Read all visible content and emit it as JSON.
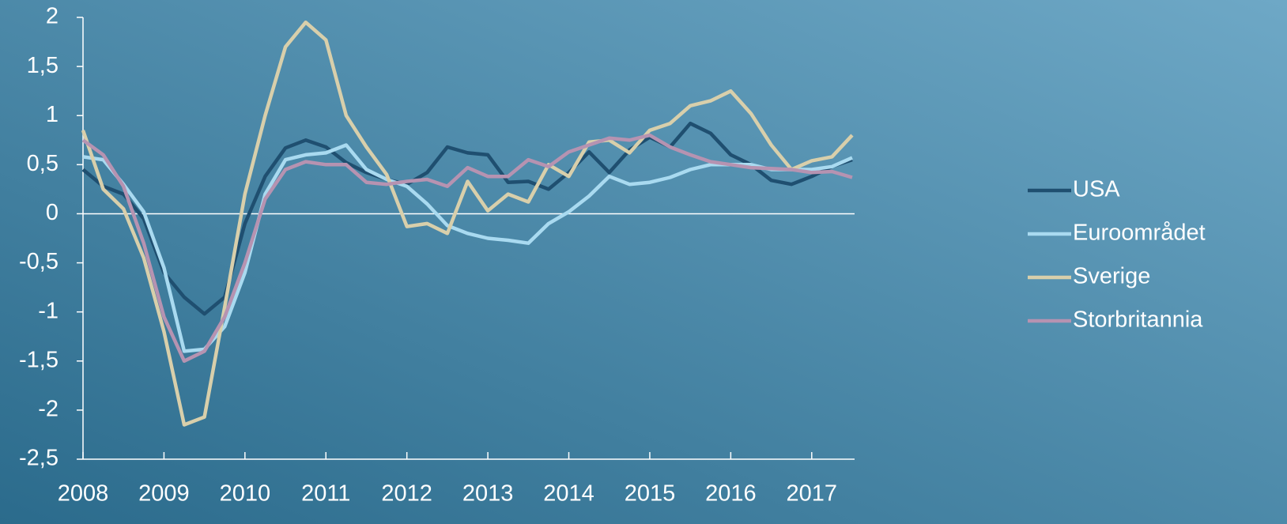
{
  "chart_data": {
    "type": "line",
    "x": [
      2008,
      2008.25,
      2008.5,
      2008.75,
      2009,
      2009.25,
      2009.5,
      2009.75,
      2010,
      2010.25,
      2010.5,
      2010.75,
      2011,
      2011.25,
      2011.5,
      2011.75,
      2012,
      2012.25,
      2012.5,
      2012.75,
      2013,
      2013.25,
      2013.5,
      2013.75,
      2014,
      2014.25,
      2014.5,
      2014.75,
      2015,
      2015.25,
      2015.5,
      2015.75,
      2016,
      2016.25,
      2016.5,
      2016.75,
      2017,
      2017.25,
      2017.5
    ],
    "series": [
      {
        "name": "USA",
        "color": "#1f4f70",
        "values": [
          0.45,
          0.28,
          0.2,
          -0.05,
          -0.6,
          -0.85,
          -1.02,
          -0.85,
          -0.1,
          0.38,
          0.67,
          0.75,
          0.68,
          0.52,
          0.42,
          0.35,
          0.3,
          0.42,
          0.68,
          0.62,
          0.6,
          0.32,
          0.33,
          0.25,
          0.42,
          0.63,
          0.42,
          0.65,
          0.78,
          0.68,
          0.92,
          0.82,
          0.6,
          0.5,
          0.34,
          0.3,
          0.38,
          0.48,
          0.55
        ]
      },
      {
        "name": "Euroområdet",
        "color": "#a9daf0",
        "values": [
          0.58,
          0.55,
          0.3,
          0.02,
          -0.55,
          -1.4,
          -1.38,
          -1.15,
          -0.6,
          0.2,
          0.55,
          0.6,
          0.62,
          0.7,
          0.45,
          0.35,
          0.28,
          0.1,
          -0.12,
          -0.2,
          -0.25,
          -0.27,
          -0.3,
          -0.1,
          0.02,
          0.18,
          0.38,
          0.3,
          0.32,
          0.37,
          0.45,
          0.5,
          0.5,
          0.5,
          0.45,
          0.45,
          0.45,
          0.48,
          0.57
        ]
      },
      {
        "name": "Sverige",
        "color": "#d8cfab",
        "values": [
          0.85,
          0.25,
          0.05,
          -0.45,
          -1.2,
          -2.15,
          -2.07,
          -0.95,
          0.2,
          1.0,
          1.7,
          1.95,
          1.77,
          1.0,
          0.68,
          0.4,
          -0.13,
          -0.1,
          -0.2,
          0.33,
          0.03,
          0.2,
          0.12,
          0.5,
          0.38,
          0.73,
          0.75,
          0.62,
          0.85,
          0.92,
          1.1,
          1.15,
          1.25,
          1.02,
          0.7,
          0.45,
          0.54,
          0.58,
          0.8
        ]
      },
      {
        "name": "Storbritannia",
        "color": "#b693b1",
        "values": [
          0.75,
          0.6,
          0.28,
          -0.3,
          -1.05,
          -1.5,
          -1.4,
          -1.05,
          -0.5,
          0.15,
          0.45,
          0.53,
          0.5,
          0.5,
          0.32,
          0.3,
          0.33,
          0.35,
          0.28,
          0.47,
          0.38,
          0.38,
          0.55,
          0.48,
          0.63,
          0.7,
          0.77,
          0.75,
          0.8,
          0.68,
          0.6,
          0.53,
          0.5,
          0.47,
          0.46,
          0.45,
          0.42,
          0.43,
          0.37
        ]
      }
    ],
    "xlim": [
      2008,
      2017.5
    ],
    "xticks": [
      2008,
      2009,
      2010,
      2011,
      2012,
      2013,
      2014,
      2015,
      2016,
      2017
    ],
    "ylim": [
      -2.5,
      2
    ],
    "yticks": [
      {
        "value": -2.5,
        "label": "-2,5"
      },
      -2,
      {
        "value": -1.5,
        "label": "-1,5"
      },
      -1,
      {
        "value": -0.5,
        "label": "-0,5"
      },
      0,
      {
        "value": 0.5,
        "label": "0,5"
      },
      1,
      {
        "value": 1.5,
        "label": "1,5"
      },
      2
    ],
    "legend": "right"
  }
}
